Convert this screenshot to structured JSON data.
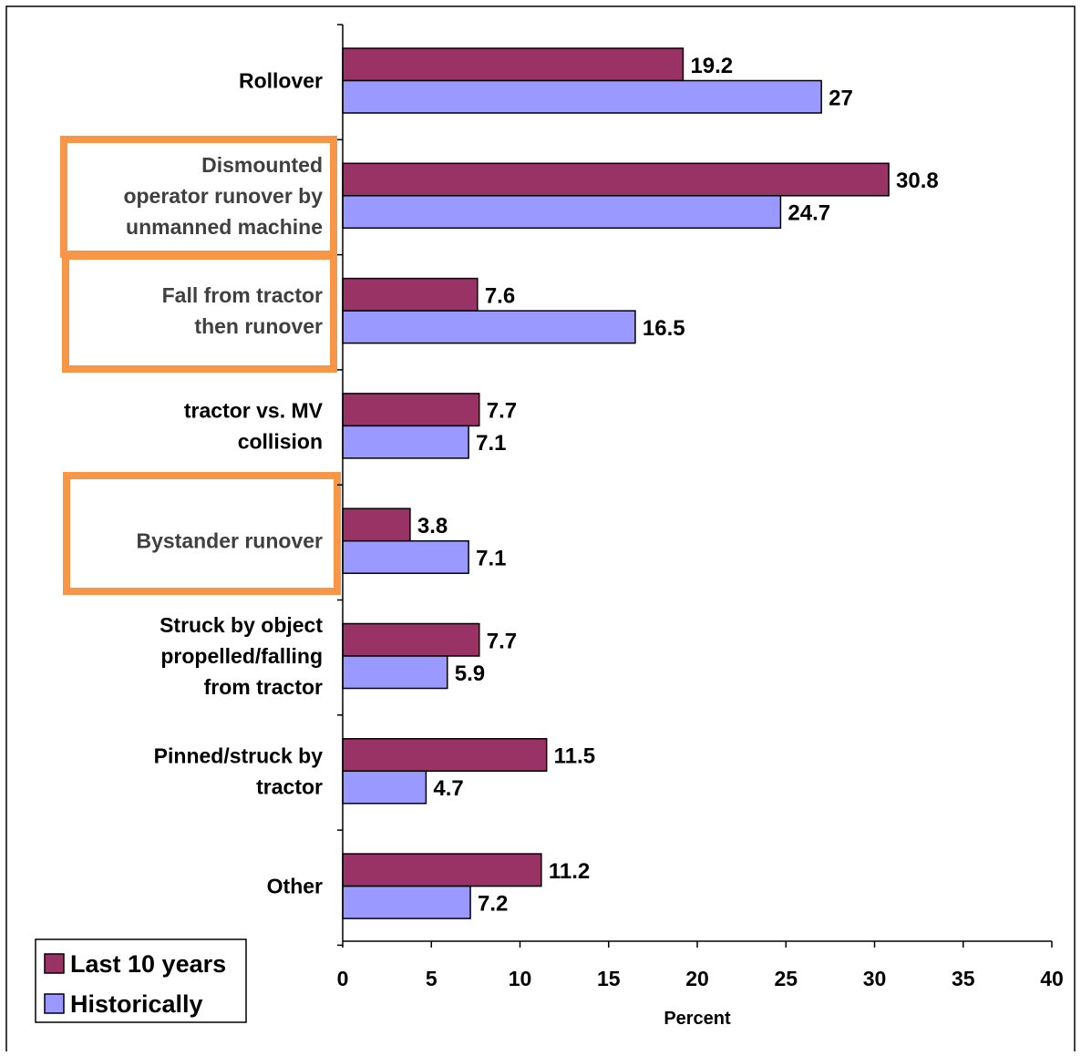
{
  "chart_data": {
    "type": "bar",
    "orientation": "horizontal",
    "categories": [
      [
        "Rollover"
      ],
      [
        "Dismounted",
        "operator runover by",
        "unmanned machine"
      ],
      [
        "Fall from tractor",
        "then runover"
      ],
      [
        "tractor vs. MV",
        "collision"
      ],
      [
        "Bystander runover"
      ],
      [
        "Struck by object",
        "propelled/falling",
        "from tractor"
      ],
      [
        "Pinned/struck by",
        "tractor"
      ],
      [
        "Other"
      ]
    ],
    "highlighted_categories": [
      1,
      2,
      4
    ],
    "series": [
      {
        "name": "Last 10 years",
        "color": "#993366",
        "values": [
          19.2,
          30.8,
          7.6,
          7.7,
          3.8,
          7.7,
          11.5,
          11.2
        ]
      },
      {
        "name": "Historically",
        "color": "#9999ff",
        "values": [
          27,
          24.7,
          16.5,
          7.1,
          7.1,
          5.9,
          4.7,
          7.2
        ]
      }
    ],
    "data_labels": [
      [
        "19.2",
        "30.8",
        "7.6",
        "7.7",
        "3.8",
        "7.7",
        "11.5",
        "11.2"
      ],
      [
        "27",
        "24.7",
        "16.5",
        "7.1",
        "7.1",
        "5.9",
        "4.7",
        "7.2"
      ]
    ],
    "xlabel": "Percent",
    "ylabel": "",
    "xlim": [
      0,
      40
    ],
    "xticks": [
      0,
      5,
      10,
      15,
      20,
      25,
      30,
      35,
      40
    ],
    "grid": false,
    "legend": {
      "position": "bottom-left",
      "entries": [
        "Last 10 years",
        "Historically"
      ]
    },
    "highlight_color": "#f79646",
    "highlight_text_color": "#404040"
  }
}
